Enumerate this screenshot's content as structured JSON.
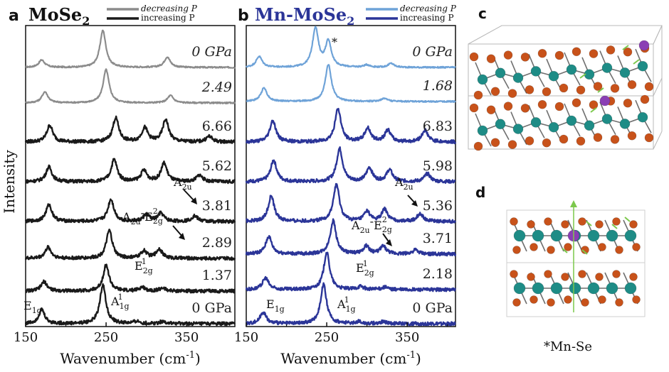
{
  "legend": {
    "decreasing_label": "decreasing P",
    "increasing_label": "increasing P",
    "decreasing_color_a": "#8c8c8c",
    "increasing_color_a": "#1a1a1a",
    "decreasing_color_b": "#6fa3d8",
    "increasing_color_b": "#2b3598"
  },
  "chart_data": [
    {
      "type": "line",
      "panel_letter": "a",
      "title": "MoSe",
      "title_sub": "2",
      "xlabel": "Wavenumber (cm",
      "xlabel_sup": "-1",
      "xlabel_close": ")",
      "ylabel": "Intensity",
      "xlim": [
        150,
        410
      ],
      "xticks": [
        150,
        250,
        350
      ],
      "series": [
        {
          "pressure": "0 GPa",
          "style": "decreasing",
          "peaks": [
            [
              170,
              0.2
            ],
            [
              246,
              1.0
            ],
            [
              326,
              0.28
            ]
          ]
        },
        {
          "pressure": "2.49",
          "style": "decreasing",
          "peaks": [
            [
              174,
              0.3
            ],
            [
              250,
              0.9
            ],
            [
              330,
              0.2
            ]
          ]
        },
        {
          "pressure": "6.66",
          "style": "increasing",
          "peaks": [
            [
              180,
              0.45
            ],
            [
              262,
              0.65
            ],
            [
              298,
              0.38
            ],
            [
              324,
              0.6
            ],
            [
              378,
              0.15
            ]
          ]
        },
        {
          "pressure": "5.62",
          "style": "increasing",
          "peaks": [
            [
              179,
              0.4
            ],
            [
              260,
              0.6
            ],
            [
              297,
              0.3
            ],
            [
              322,
              0.5
            ],
            [
              366,
              0.18
            ]
          ]
        },
        {
          "pressure": "3.81",
          "style": "increasing",
          "peaks": [
            [
              179,
              0.45
            ],
            [
              256,
              0.6
            ],
            [
              300,
              0.18
            ],
            [
              318,
              0.22
            ],
            [
              360,
              0.15
            ]
          ]
        },
        {
          "pressure": "2.89",
          "style": "increasing",
          "peaks": [
            [
              178,
              0.3
            ],
            [
              254,
              0.75
            ],
            [
              297,
              0.2
            ],
            [
              316,
              0.25
            ]
          ]
        },
        {
          "pressure": "1.37",
          "style": "increasing",
          "peaks": [
            [
              173,
              0.25
            ],
            [
              250,
              0.7
            ],
            [
              295,
              0.1
            ],
            [
              320,
              0.08
            ]
          ]
        },
        {
          "pressure": "0 GPa",
          "style": "increasing",
          "peaks": [
            [
              170,
              0.38
            ],
            [
              246,
              1.05
            ],
            [
              288,
              0.06
            ],
            [
              320,
              0.06
            ]
          ]
        }
      ],
      "annotations": [
        {
          "main": "A",
          "sub": "2u"
        },
        {
          "main": "A",
          "sub": "2u",
          "dash": "-",
          "main2": "E",
          "sub2": "2g",
          "sup2": "2"
        },
        {
          "main": "E",
          "sub": "2g",
          "sup": "1"
        },
        {
          "main": "E",
          "sub": "1g"
        },
        {
          "main": "A",
          "sub": "1g",
          "sup": "1"
        }
      ]
    },
    {
      "type": "line",
      "panel_letter": "b",
      "title": "Mn-MoSe",
      "title_sub": "2",
      "xlabel": "Wavenumber (cm",
      "xlabel_sup": "-1",
      "xlabel_close": ")",
      "xlim": [
        150,
        410
      ],
      "xticks": [
        150,
        250,
        350
      ],
      "series": [
        {
          "pressure": "0 GPa",
          "style": "decreasing",
          "peaks": [
            [
              166,
              0.28
            ],
            [
              236,
              1.0
            ],
            [
              252,
              0.65
            ],
            [
              300,
              0.06
            ],
            [
              330,
              0.1
            ]
          ]
        },
        {
          "pressure": "1.68",
          "style": "decreasing",
          "peaks": [
            [
              172,
              0.35
            ],
            [
              252,
              0.95
            ],
            [
              322,
              0.08
            ]
          ]
        },
        {
          "pressure": "6.83",
          "style": "increasing",
          "peaks": [
            [
              183,
              0.55
            ],
            [
              264,
              0.85
            ],
            [
              301,
              0.35
            ],
            [
              326,
              0.3
            ],
            [
              372,
              0.3
            ]
          ]
        },
        {
          "pressure": "5.98",
          "style": "increasing",
          "peaks": [
            [
              184,
              0.55
            ],
            [
              266,
              0.85
            ],
            [
              303,
              0.35
            ],
            [
              328,
              0.3
            ],
            [
              375,
              0.2
            ]
          ]
        },
        {
          "pressure": "5.36",
          "style": "increasing",
          "peaks": [
            [
              181,
              0.65
            ],
            [
              262,
              0.95
            ],
            [
              300,
              0.25
            ],
            [
              322,
              0.3
            ],
            [
              366,
              0.2
            ]
          ]
        },
        {
          "pressure": "3.71",
          "style": "increasing",
          "peaks": [
            [
              178,
              0.45
            ],
            [
              258,
              0.85
            ],
            [
              299,
              0.2
            ],
            [
              320,
              0.2
            ],
            [
              360,
              0.1
            ]
          ]
        },
        {
          "pressure": "2.18",
          "style": "increasing",
          "peaks": [
            [
              174,
              0.3
            ],
            [
              250,
              0.95
            ],
            [
              292,
              0.08
            ],
            [
              322,
              0.06
            ]
          ]
        },
        {
          "pressure": "0 GPa",
          "style": "increasing",
          "peaks": [
            [
              171,
              0.3
            ],
            [
              246,
              1.0
            ],
            [
              290,
              0.05
            ],
            [
              320,
              0.05
            ]
          ]
        }
      ],
      "annotations": [
        {
          "main": "*"
        },
        {
          "main": "A",
          "sub": "2u"
        },
        {
          "main": "A",
          "sub": "2u",
          "dash": "-",
          "main2": "E",
          "sub2": "2g",
          "sup2": "2"
        },
        {
          "main": "E",
          "sub": "2g",
          "sup": "1"
        },
        {
          "main": "E",
          "sub": "1g"
        },
        {
          "main": "A",
          "sub": "1g",
          "sup": "1"
        }
      ]
    }
  ],
  "structure_panels": {
    "c_letter": "c",
    "d_letter": "d",
    "footnote": "*Mn-Se",
    "colors": {
      "mo": "#1e8c86",
      "se": "#c8521a",
      "mn": "#8a3fb4",
      "arrow": "#7cc84c",
      "box": "#b8b8b8"
    }
  }
}
